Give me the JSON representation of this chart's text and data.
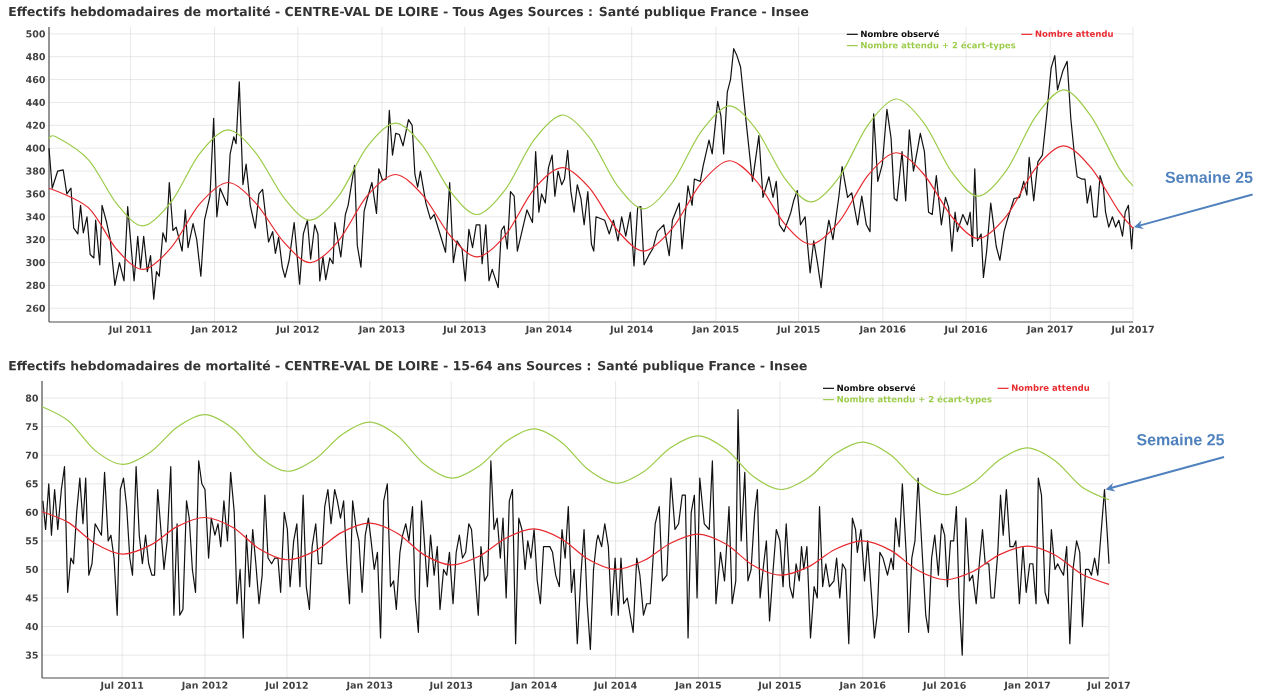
{
  "chart_data": [
    {
      "type": "line",
      "title": "Effectifs hebdomadaires de mortalité - CENTRE-VAL DE LOIRE - Tous Ages Sources : Santé publique France - Insee",
      "xlim": [
        "2011-01-04",
        "2017-07-01"
      ],
      "ylim": [
        248,
        506
      ],
      "xticks": [
        {
          "value": "2011-07-01",
          "label": "Jul 2011"
        },
        {
          "value": "2012-01-01",
          "label": "Jan 2012"
        },
        {
          "value": "2012-07-01",
          "label": "Jul 2012"
        },
        {
          "value": "2013-01-01",
          "label": "Jan 2013"
        },
        {
          "value": "2013-07-01",
          "label": "Jul 2013"
        },
        {
          "value": "2014-01-01",
          "label": "Jan 2014"
        },
        {
          "value": "2014-07-01",
          "label": "Jul 2014"
        },
        {
          "value": "2015-01-01",
          "label": "Jan 2015"
        },
        {
          "value": "2015-07-01",
          "label": "Jul 2015"
        },
        {
          "value": "2016-01-01",
          "label": "Jan 2016"
        },
        {
          "value": "2016-07-01",
          "label": "Jul 2016"
        },
        {
          "value": "2017-01-01",
          "label": "Jan 2017"
        },
        {
          "value": "2017-07-01",
          "label": "Jul 2017"
        }
      ],
      "yticks": [
        260,
        280,
        300,
        320,
        340,
        360,
        380,
        400,
        420,
        440,
        460,
        480,
        500
      ],
      "grid": true,
      "legend": "top right",
      "annotations": [
        {
          "text": "Semaine 25",
          "x": "2017-07-01",
          "y": 331
        }
      ],
      "series": [
        {
          "name": "Nombre observé",
          "color": "#111111",
          "x": [
            "2011-01-04",
            "2011-01-11",
            "2011-01-23",
            "2011-02-04",
            "2011-02-12",
            "2011-02-21",
            "2011-02-27",
            "2011-03-08",
            "2011-03-14",
            "2011-03-20",
            "2011-03-28",
            "2011-04-04",
            "2011-04-12",
            "2011-04-16",
            "2011-04-25",
            "2011-04-30",
            "2011-05-10",
            "2011-05-18",
            "2011-05-28",
            "2011-06-07",
            "2011-06-17",
            "2011-06-25",
            "2011-07-09",
            "2011-07-17",
            "2011-07-23",
            "2011-07-30",
            "2011-08-07",
            "2011-08-14",
            "2011-08-21",
            "2011-08-27",
            "2011-09-02",
            "2011-09-10",
            "2011-09-17",
            "2011-09-24",
            "2011-10-02",
            "2011-10-09",
            "2011-10-22",
            "2011-10-29",
            "2011-11-04",
            "2011-11-15",
            "2011-11-23",
            "2011-12-02",
            "2011-12-10",
            "2011-12-22",
            "2011-12-30",
            "2012-01-06",
            "2012-01-13",
            "2012-01-29",
            "2012-02-04",
            "2012-02-12",
            "2012-02-17",
            "2012-02-24",
            "2012-03-03",
            "2012-03-10",
            "2012-03-19",
            "2012-03-30",
            "2012-04-07",
            "2012-04-15",
            "2012-04-28",
            "2012-05-07",
            "2012-05-13",
            "2012-05-20",
            "2012-05-28",
            "2012-06-03",
            "2012-06-12",
            "2012-06-23",
            "2012-07-05",
            "2012-07-13",
            "2012-07-22",
            "2012-07-29",
            "2012-08-07",
            "2012-08-14",
            "2012-08-18",
            "2012-08-25",
            "2012-08-31",
            "2012-09-09",
            "2012-09-16",
            "2012-09-20",
            "2012-10-03",
            "2012-10-13",
            "2012-10-19",
            "2012-11-02",
            "2012-11-08",
            "2012-11-16",
            "2012-11-23",
            "2012-11-30",
            "2012-12-10",
            "2012-12-20",
            "2012-12-25",
            "2013-01-02",
            "2013-01-10",
            "2013-01-17",
            "2013-01-24",
            "2013-01-31",
            "2013-02-08",
            "2013-02-16",
            "2013-02-28",
            "2013-03-08",
            "2013-03-14",
            "2013-03-20",
            "2013-03-26",
            "2013-04-07",
            "2013-04-17",
            "2013-04-25",
            "2013-05-04",
            "2013-05-20",
            "2013-05-29",
            "2013-06-06",
            "2013-06-14",
            "2013-06-25",
            "2013-07-02",
            "2013-07-10",
            "2013-07-18",
            "2013-07-26",
            "2013-08-03",
            "2013-08-08",
            "2013-08-16",
            "2013-08-23",
            "2013-08-30",
            "2013-09-12",
            "2013-09-19",
            "2013-09-25",
            "2013-10-02",
            "2013-10-09",
            "2013-10-17",
            "2013-10-24",
            "2013-11-14",
            "2013-11-26",
            "2013-12-03",
            "2013-12-10",
            "2013-12-16",
            "2013-12-24",
            "2013-12-31",
            "2014-01-08",
            "2014-01-14",
            "2014-01-21",
            "2014-01-29",
            "2014-02-04",
            "2014-02-11",
            "2014-02-18",
            "2014-02-25",
            "2014-03-04",
            "2014-03-12",
            "2014-03-19",
            "2014-03-27",
            "2014-04-04",
            "2014-04-09",
            "2014-04-14",
            "2014-05-03",
            "2014-05-13",
            "2014-05-22",
            "2014-06-01",
            "2014-06-09",
            "2014-06-18",
            "2014-06-28",
            "2014-07-06",
            "2014-07-14",
            "2014-07-21",
            "2014-07-28",
            "2014-08-07",
            "2014-08-16",
            "2014-08-26",
            "2014-09-09",
            "2014-09-21",
            "2014-09-28",
            "2014-10-13",
            "2014-10-19",
            "2014-11-01",
            "2014-11-10",
            "2014-11-15",
            "2014-11-28",
            "2014-12-04",
            "2014-12-17",
            "2014-12-24",
            "2015-01-05",
            "2015-01-12",
            "2015-01-18",
            "2015-01-26",
            "2015-02-02",
            "2015-02-09",
            "2015-02-16",
            "2015-02-24",
            "2015-03-10",
            "2015-03-22",
            "2015-04-05",
            "2015-04-14",
            "2015-04-27",
            "2015-05-06",
            "2015-05-13",
            "2015-05-20",
            "2015-05-30",
            "2015-06-14",
            "2015-06-20",
            "2015-06-28",
            "2015-07-05",
            "2015-07-15",
            "2015-07-26",
            "2015-08-03",
            "2015-08-11",
            "2015-08-19",
            "2015-08-29",
            "2015-09-05",
            "2015-09-14",
            "2015-09-27",
            "2015-10-04",
            "2015-10-16",
            "2015-10-25",
            "2015-11-07",
            "2015-11-16",
            "2015-11-26",
            "2015-12-04",
            "2015-12-12",
            "2015-12-21",
            "2015-12-31",
            "2016-01-10",
            "2016-01-19",
            "2016-01-26",
            "2016-02-01",
            "2016-02-12",
            "2016-02-20",
            "2016-02-28",
            "2016-03-08",
            "2016-03-16",
            "2016-03-23",
            "2016-04-01",
            "2016-04-10",
            "2016-04-18",
            "2016-04-27",
            "2016-05-08",
            "2016-05-17",
            "2016-05-24",
            "2016-05-31",
            "2016-06-07",
            "2016-06-12",
            "2016-06-24",
            "2016-07-04",
            "2016-07-10",
            "2016-07-15",
            "2016-07-20",
            "2016-07-26",
            "2016-08-03",
            "2016-08-08",
            "2016-08-15",
            "2016-08-24",
            "2016-09-05",
            "2016-09-13",
            "2016-09-22",
            "2016-09-29",
            "2016-10-14",
            "2016-10-26",
            "2016-11-04",
            "2016-11-11",
            "2016-11-16",
            "2016-11-26",
            "2016-12-05",
            "2016-12-15",
            "2016-12-24",
            "2017-01-03",
            "2017-01-11",
            "2017-01-17",
            "2017-01-29",
            "2017-02-07",
            "2017-02-15",
            "2017-02-23",
            "2017-03-01",
            "2017-03-11",
            "2017-03-18",
            "2017-03-23",
            "2017-03-30",
            "2017-04-06",
            "2017-04-13",
            "2017-04-20",
            "2017-04-27",
            "2017-05-02",
            "2017-05-09",
            "2017-05-17",
            "2017-05-24",
            "2017-05-31",
            "2017-06-08",
            "2017-06-14",
            "2017-06-21",
            "2017-06-28",
            "2017-07-01"
          ],
          "values": [
            400,
            365,
            380,
            381,
            360,
            365,
            330,
            325,
            350,
            326,
            340,
            307,
            304,
            337,
            298,
            350,
            335,
            320,
            280,
            300,
            284,
            349,
            284,
            323,
            295,
            323,
            292,
            306,
            268,
            292,
            288,
            326,
            318,
            370,
            328,
            331,
            310,
            346,
            313,
            334,
            320,
            288,
            337,
            358,
            426,
            340,
            365,
            350,
            395,
            410,
            404,
            458,
            368,
            386,
            350,
            330,
            360,
            364,
            318,
            327,
            308,
            322,
            296,
            287,
            302,
            335,
            281,
            325,
            337,
            303,
            333,
            325,
            284,
            305,
            285,
            304,
            299,
            335,
            305,
            342,
            350,
            385,
            315,
            296,
            345,
            356,
            370,
            343,
            382,
            372,
            373,
            433,
            394,
            413,
            412,
            402,
            425,
            420,
            377,
            366,
            380,
            352,
            338,
            342,
            330,
            309,
            370,
            300,
            319,
            312,
            284,
            329,
            313,
            333,
            333,
            299,
            333,
            284,
            294,
            278,
            328,
            332,
            312,
            362,
            358,
            310,
            346,
            335,
            397,
            344,
            360,
            352,
            383,
            394,
            358,
            380,
            368,
            373,
            398,
            362,
            344,
            368,
            356,
            333,
            362,
            316,
            310,
            340,
            337,
            325,
            337,
            319,
            340,
            323,
            344,
            297,
            348,
            349,
            298,
            306,
            312,
            327,
            333,
            306,
            337,
            352,
            312,
            367,
            350,
            373,
            371,
            384,
            407,
            395,
            441,
            428,
            395,
            449,
            460,
            487,
            481,
            471,
            416,
            371,
            411,
            357,
            375,
            357,
            371,
            333,
            327,
            344,
            354,
            363,
            333,
            340,
            291,
            319,
            300,
            278,
            320,
            337,
            320,
            358,
            384,
            357,
            361,
            333,
            358,
            333,
            327,
            430,
            371,
            386,
            434,
            409,
            356,
            354,
            397,
            354,
            416,
            380,
            397,
            413,
            397,
            344,
            342,
            376,
            333,
            357,
            348,
            310,
            344,
            327,
            342,
            333,
            344,
            314,
            382,
            319,
            325,
            287,
            310,
            352,
            314,
            302,
            327,
            337,
            356,
            357,
            371,
            359,
            392,
            354,
            388,
            394,
            428,
            470,
            481,
            451,
            468,
            476,
            426,
            394,
            375,
            373,
            373,
            352,
            367,
            340,
            340,
            376,
            367,
            344,
            331,
            340,
            331,
            337,
            323,
            344,
            350,
            312,
            331
          ]
        },
        {
          "name": "Nombre attendu",
          "color": "#e8292f",
          "x": [
            "2011-01-04",
            "2011-03-31",
            "2011-05-31",
            "2011-07-28",
            "2011-09-28",
            "2011-11-29",
            "2012-01-30",
            "2012-03-31",
            "2012-05-31",
            "2012-07-28",
            "2012-09-28",
            "2012-11-29",
            "2013-01-30",
            "2013-03-31",
            "2013-05-31",
            "2013-07-28",
            "2013-09-28",
            "2013-11-29",
            "2014-01-30",
            "2014-03-31",
            "2014-05-31",
            "2014-07-28",
            "2014-09-28",
            "2014-11-29",
            "2015-01-30",
            "2015-03-31",
            "2015-05-31",
            "2015-07-28",
            "2015-09-28",
            "2015-11-29",
            "2016-01-30",
            "2016-03-31",
            "2016-05-31",
            "2016-07-28",
            "2016-09-28",
            "2016-11-29",
            "2017-01-30",
            "2017-03-31",
            "2017-05-31",
            "2017-07-01"
          ],
          "values": [
            365,
            348,
            312,
            294,
            313,
            351,
            370,
            352,
            318,
            300,
            319,
            358,
            377,
            359,
            323,
            305,
            324,
            364,
            383,
            365,
            328,
            310,
            330,
            369,
            389,
            371,
            334,
            316,
            336,
            376,
            396,
            377,
            340,
            321,
            341,
            382,
            402,
            383,
            345,
            330
          ]
        },
        {
          "name": "Nombre attendu + 2 écart-types",
          "color": "#9ccc4a",
          "x": [
            "2011-01-04",
            "2011-01-19",
            "2011-03-31",
            "2011-05-31",
            "2011-07-28",
            "2011-09-28",
            "2011-11-29",
            "2012-01-30",
            "2012-03-31",
            "2012-05-31",
            "2012-07-28",
            "2012-09-28",
            "2012-11-29",
            "2013-01-30",
            "2013-03-31",
            "2013-05-31",
            "2013-07-28",
            "2013-09-28",
            "2013-11-29",
            "2014-01-30",
            "2014-03-31",
            "2014-05-31",
            "2014-07-28",
            "2014-09-28",
            "2014-11-29",
            "2015-01-30",
            "2015-03-31",
            "2015-05-31",
            "2015-07-28",
            "2015-09-28",
            "2015-11-29",
            "2016-01-30",
            "2016-03-31",
            "2016-05-31",
            "2016-07-28",
            "2016-09-28",
            "2016-11-29",
            "2017-01-30",
            "2017-03-31",
            "2017-05-31",
            "2017-07-01"
          ],
          "values": [
            408,
            410,
            390,
            352,
            332,
            353,
            395,
            416,
            396,
            357,
            337,
            358,
            401,
            422,
            402,
            362,
            342,
            364,
            407,
            429,
            409,
            367,
            347,
            370,
            414,
            437,
            416,
            374,
            353,
            375,
            420,
            443,
            422,
            379,
            358,
            381,
            427,
            451,
            428,
            383,
            367
          ]
        }
      ]
    },
    {
      "type": "line",
      "title": "Effectifs hebdomadaires de mortalité - CENTRE-VAL DE LOIRE - 15-64 ans Sources : Santé publique France - Insee",
      "xlim": [
        "2011-01-04",
        "2017-07-01"
      ],
      "ylim": [
        31,
        83
      ],
      "xticks": [
        {
          "value": "2011-07-01",
          "label": "Jul 2011"
        },
        {
          "value": "2012-01-01",
          "label": "Jan 2012"
        },
        {
          "value": "2012-07-01",
          "label": "Jul 2012"
        },
        {
          "value": "2013-01-01",
          "label": "Jan 2013"
        },
        {
          "value": "2013-07-01",
          "label": "Jul 2013"
        },
        {
          "value": "2014-01-01",
          "label": "Jan 2014"
        },
        {
          "value": "2014-07-01",
          "label": "Jul 2014"
        },
        {
          "value": "2015-01-01",
          "label": "Jan 2015"
        },
        {
          "value": "2015-07-01",
          "label": "Jul 2015"
        },
        {
          "value": "2016-01-01",
          "label": "Jan 2016"
        },
        {
          "value": "2016-07-01",
          "label": "Jul 2016"
        },
        {
          "value": "2017-01-01",
          "label": "Jan 2017"
        },
        {
          "value": "2017-07-01",
          "label": "Jul 2017"
        }
      ],
      "yticks": [
        35,
        40,
        45,
        50,
        55,
        60,
        65,
        70,
        75,
        80
      ],
      "grid": true,
      "legend": "top right",
      "annotations": [
        {
          "text": "Semaine 25",
          "x": "2017-06-21",
          "y": 64
        }
      ],
      "series": [
        {
          "name": "Nombre observé",
          "color": "#111111",
          "x": [
            "2011-01-06",
            "2011-01-12",
            "2011-01-19",
            "2011-01-25",
            "2011-02-01",
            "2011-02-08",
            "2011-02-16",
            "2011-02-23",
            "2011-03-02",
            "2011-03-09",
            "2011-03-15",
            "2011-03-22",
            "2011-03-29",
            "2011-04-05",
            "2011-04-11",
            "2011-04-18",
            "2011-04-25",
            "2011-05-02",
            "2011-05-16",
            "2011-05-23",
            "2011-05-31",
            "2011-06-06",
            "2011-06-13",
            "2011-06-20",
            "2011-06-27",
            "2011-07-04",
            "2011-07-11",
            "2011-07-18",
            "2011-07-24",
            "2011-08-01",
            "2011-08-08",
            "2011-08-15",
            "2011-08-22",
            "2011-08-29",
            "2011-09-05",
            "2011-09-11",
            "2011-09-18",
            "2011-09-26",
            "2011-10-02",
            "2011-10-09",
            "2011-10-17",
            "2011-10-24",
            "2011-10-31",
            "2011-11-06",
            "2011-11-13",
            "2011-11-21",
            "2011-11-27",
            "2011-12-04",
            "2011-12-11",
            "2011-12-18",
            "2011-12-25",
            "2012-01-01",
            "2012-01-09",
            "2012-01-15",
            "2012-01-23",
            "2012-01-30",
            "2012-02-05",
            "2012-02-12",
            "2012-02-20",
            "2012-02-27",
            "2012-03-06",
            "2012-03-12",
            "2012-03-19",
            "2012-03-26",
            "2012-04-02",
            "2012-04-09",
            "2012-04-16",
            "2012-04-23",
            "2012-04-30",
            "2012-05-07",
            "2012-05-13",
            "2012-05-20",
            "2012-05-28",
            "2012-06-04",
            "2012-06-11",
            "2012-06-17",
            "2012-06-25",
            "2012-07-02",
            "2012-07-08",
            "2012-07-16",
            "2012-07-23",
            "2012-07-30",
            "2012-08-06",
            "2012-08-13",
            "2012-08-20",
            "2012-08-26",
            "2012-09-03",
            "2012-09-09",
            "2012-09-16",
            "2012-09-23",
            "2012-09-30",
            "2012-10-07",
            "2012-10-15",
            "2012-10-21",
            "2012-10-28",
            "2012-11-04",
            "2012-11-11",
            "2012-11-17",
            "2012-11-24",
            "2012-12-02",
            "2012-12-08",
            "2012-12-15",
            "2012-12-22",
            "2012-12-29",
            "2013-01-04",
            "2013-01-11",
            "2013-01-18",
            "2013-01-25",
            "2013-02-01",
            "2013-02-09",
            "2013-02-16",
            "2013-02-23",
            "2013-03-01",
            "2013-03-09",
            "2013-03-15",
            "2013-03-22",
            "2013-03-29",
            "2013-04-06",
            "2013-04-12",
            "2013-04-19",
            "2013-04-26",
            "2013-05-03",
            "2013-05-09",
            "2013-05-16",
            "2013-05-24",
            "2013-05-31",
            "2013-06-06",
            "2013-06-14",
            "2013-06-21",
            "2013-06-27",
            "2013-07-05",
            "2013-07-12",
            "2013-07-19",
            "2013-07-26",
            "2013-08-02",
            "2013-08-09",
            "2013-08-15",
            "2013-08-23",
            "2013-08-30",
            "2013-09-05",
            "2013-09-13",
            "2013-09-20",
            "2013-09-27",
            "2013-10-04",
            "2013-10-11",
            "2013-10-18",
            "2013-10-24",
            "2013-10-31",
            "2013-11-07",
            "2013-11-14",
            "2013-11-21",
            "2013-11-28",
            "2013-12-05",
            "2013-12-12",
            "2013-12-18",
            "2013-12-25",
            "2014-01-01",
            "2014-01-08",
            "2014-01-15",
            "2014-01-22",
            "2014-01-29",
            "2014-02-05",
            "2014-02-11",
            "2014-02-18",
            "2014-02-26",
            "2014-03-04",
            "2014-03-11",
            "2014-03-18",
            "2014-03-25",
            "2014-03-31",
            "2014-04-07",
            "2014-04-15",
            "2014-04-22",
            "2014-04-29",
            "2014-05-06",
            "2014-05-13",
            "2014-05-20",
            "2014-05-23",
            "2014-05-31",
            "2014-06-07",
            "2014-06-15",
            "2014-06-22",
            "2014-06-30",
            "2014-07-07",
            "2014-07-13",
            "2014-07-19",
            "2014-07-27",
            "2014-08-09",
            "2014-08-17",
            "2014-08-24",
            "2014-09-01",
            "2014-09-08",
            "2014-09-16",
            "2014-09-27",
            "2014-10-06",
            "2014-10-13",
            "2014-10-23",
            "2014-11-01",
            "2014-11-10",
            "2014-11-18",
            "2014-11-26",
            "2014-12-03",
            "2014-12-09",
            "2014-12-16",
            "2014-12-23",
            "2014-12-29",
            "2015-01-04",
            "2015-01-14",
            "2015-01-25",
            "2015-02-01",
            "2015-02-09",
            "2015-02-19",
            "2015-02-28",
            "2015-03-10",
            "2015-03-17",
            "2015-03-25",
            "2015-03-30",
            "2015-04-06",
            "2015-04-14",
            "2015-04-21",
            "2015-04-28",
            "2015-05-06",
            "2015-05-12",
            "2015-05-18",
            "2015-05-26",
            "2015-06-01",
            "2015-06-08",
            "2015-06-16",
            "2015-06-23",
            "2015-07-01",
            "2015-07-08",
            "2015-07-15",
            "2015-07-23",
            "2015-07-30",
            "2015-08-06",
            "2015-08-13",
            "2015-08-18",
            "2015-08-23",
            "2015-08-30",
            "2015-09-07",
            "2015-09-15",
            "2015-09-22",
            "2015-09-27",
            "2015-10-04",
            "2015-10-11",
            "2015-10-19",
            "2015-10-29",
            "2015-11-04",
            "2015-11-11",
            "2015-11-17",
            "2015-11-24",
            "2015-12-01",
            "2015-12-09",
            "2015-12-16",
            "2015-12-20",
            "2015-12-28",
            "2016-01-05",
            "2016-01-12",
            "2016-01-20",
            "2016-01-27",
            "2016-02-02",
            "2016-02-08",
            "2016-02-15",
            "2016-02-25",
            "2016-03-04",
            "2016-03-09",
            "2016-03-14",
            "2016-03-22",
            "2016-03-29",
            "2016-04-07",
            "2016-04-12",
            "2016-04-19",
            "2016-04-26",
            "2016-05-03",
            "2016-05-12",
            "2016-05-20",
            "2016-05-26",
            "2016-06-02",
            "2016-06-09",
            "2016-06-17",
            "2016-06-24",
            "2016-07-01",
            "2016-07-07",
            "2016-07-14",
            "2016-07-21",
            "2016-07-27",
            "2016-08-02",
            "2016-08-09",
            "2016-08-17",
            "2016-08-25",
            "2016-09-01",
            "2016-09-09",
            "2016-09-17",
            "2016-09-23",
            "2016-09-29",
            "2016-10-07",
            "2016-10-12",
            "2016-10-19",
            "2016-10-27",
            "2016-11-02",
            "2016-11-08",
            "2016-11-15",
            "2016-11-23",
            "2016-12-01",
            "2016-12-06",
            "2016-12-14",
            "2016-12-22",
            "2016-12-29",
            "2017-01-06",
            "2017-01-13",
            "2017-01-20",
            "2017-01-25",
            "2017-02-01",
            "2017-02-09",
            "2017-02-16",
            "2017-02-23",
            "2017-03-03",
            "2017-03-09",
            "2017-03-15",
            "2017-03-22",
            "2017-03-29",
            "2017-04-05",
            "2017-04-12",
            "2017-04-20",
            "2017-04-27",
            "2017-05-03",
            "2017-05-10",
            "2017-05-17",
            "2017-05-23",
            "2017-05-30",
            "2017-06-06",
            "2017-06-14",
            "2017-06-21",
            "2017-06-28",
            "2017-07-01"
          ],
          "values": [
            62,
            57,
            65,
            56,
            64,
            57,
            64,
            68,
            46,
            52,
            51,
            60,
            66,
            58,
            66,
            49,
            51,
            58,
            56,
            67,
            55,
            56,
            52,
            42,
            64,
            66,
            61,
            52,
            49,
            68,
            56,
            51,
            56,
            51,
            49,
            49,
            64,
            56,
            50,
            55,
            68,
            42,
            58,
            42,
            43,
            62,
            59,
            50,
            46,
            69,
            65,
            64,
            52,
            59,
            56,
            58,
            54,
            62,
            55,
            67,
            60,
            44,
            50,
            38,
            56,
            47,
            57,
            51,
            44,
            49,
            63,
            52,
            51,
            52,
            52,
            46,
            60,
            57,
            47,
            55,
            58,
            47,
            63,
            47,
            43,
            54,
            58,
            51,
            51,
            61,
            64,
            58,
            64,
            62,
            59,
            62,
            51,
            44,
            62,
            57,
            55,
            46,
            56,
            59,
            55,
            50,
            53,
            38,
            62,
            65,
            47,
            48,
            43,
            53,
            56,
            58,
            55,
            61,
            45,
            39,
            62,
            54,
            47,
            56,
            49,
            54,
            43,
            50,
            49,
            53,
            44,
            53,
            56,
            52,
            53,
            58,
            57,
            49,
            42,
            54,
            48,
            49,
            69,
            57,
            59,
            52,
            59,
            45,
            62,
            64,
            37,
            59,
            57,
            50,
            55,
            52,
            57,
            48,
            44,
            54,
            54,
            54,
            53,
            49,
            47,
            57,
            52,
            61,
            46,
            50,
            37,
            49,
            57,
            44,
            36,
            50,
            55,
            56,
            54,
            58,
            54,
            42,
            52,
            42,
            52,
            44,
            45,
            39,
            52,
            49,
            42,
            44,
            44,
            58,
            61,
            48,
            49,
            66,
            57,
            58,
            63,
            63,
            38,
            60,
            63,
            45,
            66,
            58,
            57,
            69,
            44,
            53,
            48,
            61,
            44,
            48,
            78,
            55,
            67,
            48,
            50,
            60,
            64,
            45,
            51,
            55,
            41,
            50,
            57,
            55,
            47,
            58,
            47,
            45,
            51,
            48,
            54,
            50,
            54,
            38,
            47,
            45,
            61,
            47,
            51,
            47,
            48,
            52,
            45,
            51,
            50,
            37,
            59,
            57,
            53,
            57,
            48,
            55,
            46,
            38,
            42,
            53,
            52,
            49,
            52,
            50,
            59,
            54,
            65,
            52,
            39,
            52,
            55,
            66,
            53,
            42,
            39,
            52,
            56,
            49,
            58,
            56,
            47,
            55,
            55,
            61,
            45,
            35,
            59,
            48,
            49,
            44,
            52,
            57,
            51,
            51,
            45,
            45,
            53,
            63,
            56,
            64,
            54,
            54,
            55,
            44,
            54,
            46,
            51,
            51,
            44,
            66,
            63,
            46,
            44,
            57,
            50,
            51,
            50,
            49,
            54,
            37,
            50,
            55,
            53,
            40,
            50,
            50,
            49,
            52,
            49,
            57,
            64,
            55,
            51
          ]
        },
        {
          "name": "Nombre attendu",
          "color": "#e8292f",
          "x": [
            "2011-01-04",
            "2011-03-04",
            "2011-05-01",
            "2011-07-02",
            "2011-09-03",
            "2011-10-31",
            "2012-01-01",
            "2012-03-04",
            "2012-05-01",
            "2012-07-02",
            "2012-09-03",
            "2012-10-31",
            "2013-01-01",
            "2013-03-04",
            "2013-05-01",
            "2013-07-02",
            "2013-09-03",
            "2013-10-31",
            "2014-01-01",
            "2014-03-04",
            "2014-05-01",
            "2014-07-02",
            "2014-09-03",
            "2014-10-31",
            "2015-01-01",
            "2015-03-04",
            "2015-05-01",
            "2015-07-02",
            "2015-09-03",
            "2015-10-31",
            "2016-01-01",
            "2016-03-04",
            "2016-05-01",
            "2016-07-02",
            "2016-09-03",
            "2016-10-31",
            "2017-01-01",
            "2017-03-04",
            "2017-05-01",
            "2017-07-01"
          ],
          "values": [
            60.1,
            58.2,
            54.6,
            52.7,
            54.3,
            57.5,
            59.1,
            57.3,
            53.6,
            51.7,
            53.3,
            56.5,
            58.1,
            56.3,
            52.6,
            50.8,
            52.4,
            55.5,
            57.1,
            55.3,
            51.8,
            50.0,
            51.6,
            54.6,
            56.2,
            54.4,
            50.8,
            49.0,
            50.5,
            53.5,
            55.0,
            53.3,
            49.9,
            48.2,
            49.7,
            52.6,
            54.1,
            52.5,
            49.2,
            47.4
          ]
        },
        {
          "name": "Nombre attendu + 2 écart-types",
          "color": "#9ccc4a",
          "x": [
            "2011-01-04",
            "2011-03-04",
            "2011-05-01",
            "2011-07-02",
            "2011-09-03",
            "2011-10-31",
            "2012-01-01",
            "2012-03-04",
            "2012-05-01",
            "2012-07-02",
            "2012-09-03",
            "2012-10-31",
            "2013-01-01",
            "2013-03-04",
            "2013-05-01",
            "2013-07-02",
            "2013-09-03",
            "2013-10-31",
            "2014-01-01",
            "2014-03-04",
            "2014-05-01",
            "2014-07-02",
            "2014-09-03",
            "2014-10-31",
            "2015-01-01",
            "2015-03-04",
            "2015-05-01",
            "2015-07-02",
            "2015-09-03",
            "2015-10-31",
            "2016-01-01",
            "2016-03-04",
            "2016-05-01",
            "2016-07-02",
            "2016-09-03",
            "2016-10-31",
            "2017-01-01",
            "2017-03-04",
            "2017-05-01",
            "2017-07-01"
          ],
          "values": [
            78.5,
            76.0,
            70.9,
            68.4,
            70.6,
            74.9,
            77.1,
            74.6,
            69.7,
            67.2,
            69.4,
            73.6,
            75.8,
            73.4,
            68.5,
            66.0,
            68.2,
            72.4,
            74.6,
            72.2,
            67.5,
            65.1,
            67.2,
            71.3,
            73.4,
            71.0,
            66.4,
            64.0,
            66.1,
            70.2,
            72.3,
            70.0,
            65.4,
            63.1,
            65.2,
            69.2,
            71.3,
            69.0,
            64.5,
            62.2
          ]
        }
      ]
    }
  ]
}
